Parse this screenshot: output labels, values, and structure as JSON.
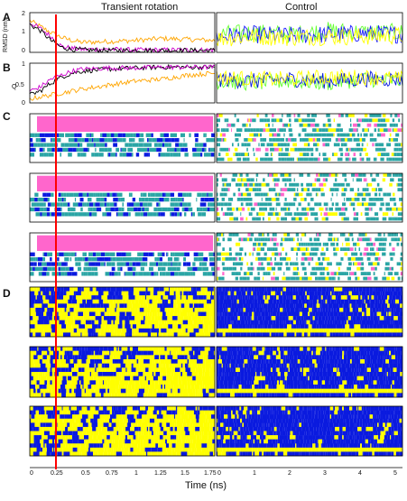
{
  "figure": {
    "columns": [
      "Transient rotation",
      "Control"
    ],
    "panels": [
      "A",
      "B",
      "C",
      "D"
    ],
    "x_axis_title": "Time (ns)",
    "x_ticks_left": [
      "0",
      "0.25",
      "0.5",
      "0.75",
      "1",
      "1.25",
      "1.5",
      "1.75"
    ],
    "x_ticks_right": [
      "0",
      "1",
      "2",
      "3",
      "4",
      "5"
    ]
  },
  "panel_a": {
    "ylabel": "RMSD (nm)",
    "yticks": [
      "2",
      "1",
      "0"
    ]
  },
  "panel_b": {
    "ylabel": "Q",
    "yticks": [
      "1",
      "0.5",
      "0"
    ]
  },
  "colors": {
    "magenta": "#ff66cc",
    "teal": "#2aa5a5",
    "blue": "#0a1adf",
    "yellow": "#ffff00",
    "orange": "#ffa500",
    "purple": "#cc00cc",
    "green": "#66ff33",
    "marker": "#ff0000"
  },
  "chart_data": [
    {
      "type": "line",
      "panel": "A",
      "title": "Transient rotation",
      "xlabel": "",
      "ylabel": "RMSD (nm)",
      "xlim": [
        0,
        1.75
      ],
      "ylim": [
        0,
        2
      ],
      "series": [
        {
          "x": [
            0,
            0.1,
            0.2,
            0.3,
            0.4,
            0.5,
            0.75,
            1.0,
            1.25,
            1.5,
            1.75
          ],
          "values": [
            1.6,
            1.3,
            1.0,
            0.75,
            0.6,
            0.5,
            0.55,
            0.6,
            0.7,
            0.65,
            0.6
          ]
        },
        {
          "x": [
            0,
            0.1,
            0.2,
            0.3,
            0.4,
            0.5,
            0.75,
            1.0,
            1.25,
            1.5,
            1.75
          ],
          "values": [
            1.5,
            1.2,
            0.8,
            0.3,
            0.2,
            0.15,
            0.15,
            0.12,
            0.12,
            0.12,
            0.12
          ]
        },
        {
          "x": [
            0,
            0.1,
            0.2,
            0.3,
            0.4,
            0.5,
            0.75,
            1.0,
            1.25,
            1.5,
            1.75
          ],
          "values": [
            1.4,
            1.1,
            0.6,
            0.25,
            0.15,
            0.12,
            0.1,
            0.1,
            0.1,
            0.1,
            0.1
          ]
        }
      ]
    },
    {
      "type": "line",
      "panel": "A",
      "title": "Control",
      "xlabel": "",
      "ylabel": "",
      "xlim": [
        0,
        5
      ],
      "ylim": [
        0,
        2
      ],
      "series": [
        {
          "x": [
            0,
            1,
            2,
            3,
            4,
            5
          ],
          "values": [
            0.9,
            1.0,
            0.9,
            1.1,
            1.0,
            1.0
          ]
        },
        {
          "x": [
            0,
            1,
            2,
            3,
            4,
            5
          ],
          "values": [
            0.8,
            0.9,
            0.85,
            0.9,
            0.95,
            0.9
          ]
        },
        {
          "x": [
            0,
            1,
            2,
            3,
            4,
            5
          ],
          "values": [
            0.7,
            0.8,
            0.75,
            0.8,
            0.8,
            0.85
          ]
        }
      ]
    },
    {
      "type": "line",
      "panel": "B",
      "title": "Transient rotation",
      "xlabel": "",
      "ylabel": "Q",
      "xlim": [
        0,
        1.75
      ],
      "ylim": [
        0,
        1
      ],
      "series": [
        {
          "x": [
            0,
            0.1,
            0.2,
            0.3,
            0.4,
            0.5,
            0.75,
            1.0,
            1.25,
            1.5,
            1.75
          ],
          "values": [
            0.2,
            0.3,
            0.5,
            0.65,
            0.75,
            0.8,
            0.85,
            0.88,
            0.9,
            0.9,
            0.9
          ]
        },
        {
          "x": [
            0,
            0.1,
            0.2,
            0.3,
            0.4,
            0.5,
            0.75,
            1.0,
            1.25,
            1.5,
            1.75
          ],
          "values": [
            0.3,
            0.4,
            0.6,
            0.7,
            0.8,
            0.85,
            0.88,
            0.88,
            0.9,
            0.9,
            0.9
          ]
        },
        {
          "x": [
            0,
            0.1,
            0.2,
            0.3,
            0.4,
            0.5,
            0.75,
            1.0,
            1.25,
            1.5,
            1.75
          ],
          "values": [
            0.1,
            0.15,
            0.2,
            0.25,
            0.3,
            0.35,
            0.45,
            0.55,
            0.6,
            0.7,
            0.75
          ]
        }
      ]
    },
    {
      "type": "line",
      "panel": "B",
      "title": "Control",
      "xlabel": "",
      "ylabel": "",
      "xlim": [
        0,
        5
      ],
      "ylim": [
        0,
        1
      ],
      "series": [
        {
          "x": [
            0,
            1,
            2,
            3,
            4,
            5
          ],
          "values": [
            0.55,
            0.5,
            0.55,
            0.5,
            0.6,
            0.55
          ]
        },
        {
          "x": [
            0,
            1,
            2,
            3,
            4,
            5
          ],
          "values": [
            0.6,
            0.55,
            0.6,
            0.55,
            0.6,
            0.6
          ]
        },
        {
          "x": [
            0,
            1,
            2,
            3,
            4,
            5
          ],
          "values": [
            0.65,
            0.6,
            0.6,
            0.65,
            0.65,
            0.6
          ]
        }
      ]
    }
  ]
}
